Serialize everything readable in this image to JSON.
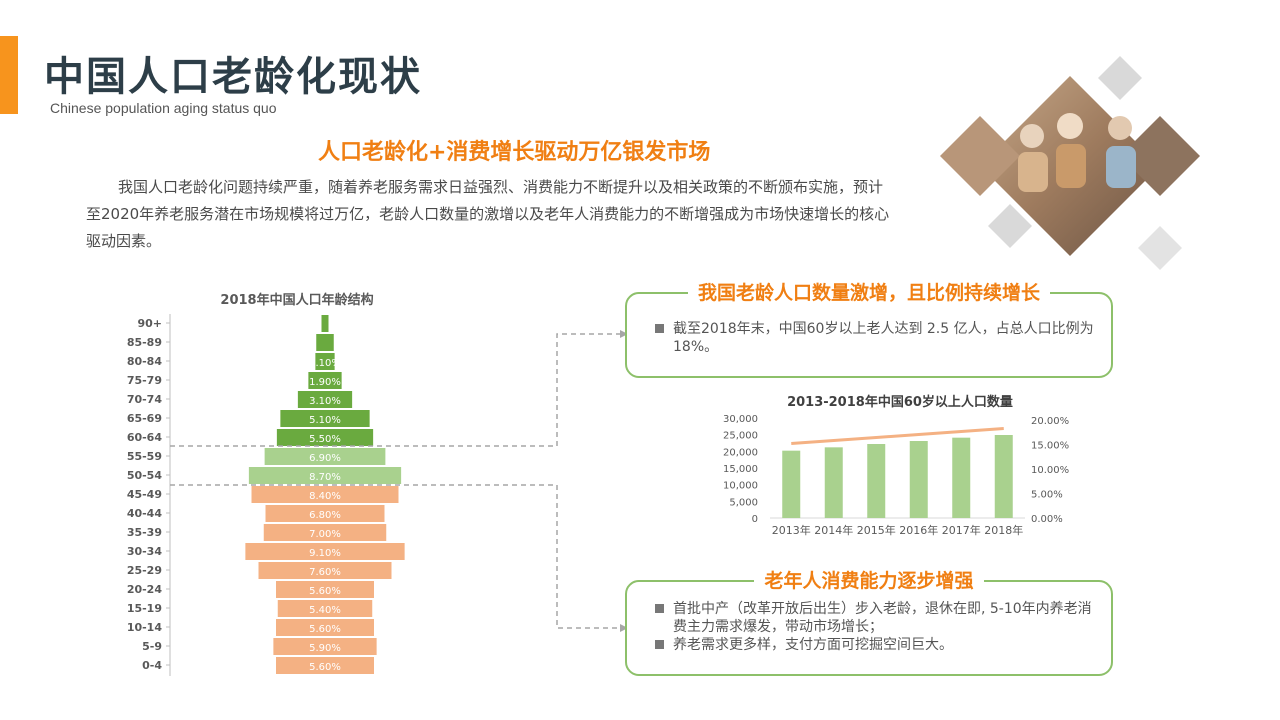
{
  "header": {
    "title": "中国人口老龄化现状",
    "subtitle": "Chinese population aging status quo"
  },
  "headline": "人口老龄化+消费增长驱动万亿银发市场",
  "intro": "我国人口老龄化问题持续严重，随着养老服务需求日益强烈、消费能力不断提升以及相关政策的不断颁布实施，预计至2020年养老服务潜在市场规模将过万亿，老龄人口数量的激增以及老年人消费能力的不断增强成为市场快速增长的核心驱动因素。",
  "box1": {
    "title": "我国老龄人口数量激增，且比例持续增长",
    "items": [
      "截至2018年末，中国60岁以上老人达到 2.5 亿人，占总人口比例为 18%。"
    ]
  },
  "box2": {
    "title": "老年人消费能力逐步增强",
    "items": [
      "首批中产（改革开放后出生）步入老龄，退休在即, 5-10年内养老消费主力需求爆发，带动市场增长；",
      "养老需求更多样，支付方面可挖掘空间巨大。"
    ]
  },
  "chart_data": [
    {
      "type": "bar",
      "title": "2018年中国人口年龄结构",
      "orientation": "horizontal",
      "categories": [
        "90+",
        "85-89",
        "80-84",
        "75-79",
        "70-74",
        "65-69",
        "60-64",
        "55-59",
        "50-54",
        "45-49",
        "40-44",
        "35-39",
        "30-34",
        "25-29",
        "20-24",
        "15-19",
        "10-14",
        "5-9",
        "0-4"
      ],
      "values": [
        0.4,
        1.0,
        1.1,
        1.9,
        3.1,
        5.1,
        5.5,
        6.9,
        8.7,
        8.4,
        6.8,
        7.0,
        9.1,
        7.6,
        5.6,
        5.4,
        5.6,
        5.9,
        5.6
      ],
      "labels": [
        "",
        "",
        "1.10%",
        "1.90%",
        "3.10%",
        "5.10%",
        "5.50%",
        "6.90%",
        "8.70%",
        "8.40%",
        "6.80%",
        "7.00%",
        "9.10%",
        "7.60%",
        "5.60%",
        "5.40%",
        "5.60%",
        "5.90%",
        "5.60%"
      ],
      "colors": {
        "elderly": "#6aaa3f",
        "middle": "#a9d18e",
        "young": "#f4b183"
      }
    },
    {
      "type": "bar",
      "title": "2013-2018年中国60岁以上人口数量",
      "categories": [
        "2013年",
        "2014年",
        "2015年",
        "2016年",
        "2017年",
        "2018年"
      ],
      "series": [
        {
          "values": [
            20200,
            21200,
            22200,
            23100,
            24100,
            24900
          ],
          "axis": "left",
          "color": "#a9d18e"
        },
        {
          "type": "line",
          "values": [
            14.9,
            15.5,
            16.1,
            16.7,
            17.3,
            17.9
          ],
          "axis": "right",
          "color": "#f4b183"
        }
      ],
      "ylim": [
        0,
        30000
      ],
      "yticks": [
        "30,000",
        "25,000",
        "20,000",
        "15,000",
        "10,000",
        "5,000",
        "0"
      ],
      "y2lim": [
        0,
        20
      ],
      "y2ticks": [
        "20.00%",
        "15.00%",
        "10.00%",
        "5.00%",
        "0.00%"
      ]
    }
  ]
}
